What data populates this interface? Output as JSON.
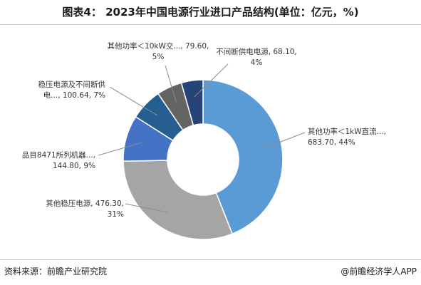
{
  "title": "图表4： 2023年中国电源行业进口产品结构(单位：亿元，%)",
  "source": "资料来源：前瞻产业研究院",
  "brand": "@前瞻经济学人APP",
  "chart_data": {
    "type": "pie",
    "donut": true,
    "start_angle_deg": 0,
    "direction": "clockwise",
    "slices": [
      {
        "name": "其他功率＜1kW直流...",
        "value": 683.7,
        "percent": "44%",
        "color": "#5b9bd5",
        "label_lines": [
          "其他功率＜1kW直流...,",
          "683.70, 44%"
        ],
        "label_anchor": "start"
      },
      {
        "name": "其他稳压电源",
        "value": 476.3,
        "percent": "31%",
        "color": "#a5a5a5",
        "label_lines": [
          "其他稳压电源, 476.30,",
          "31%"
        ],
        "label_anchor": "end"
      },
      {
        "name": "品目8471所列机器...",
        "value": 144.8,
        "percent": "9%",
        "color": "#4472c4",
        "label_lines": [
          "品目8471所列机器...,",
          "144.80, 9%"
        ],
        "label_anchor": "end"
      },
      {
        "name": "稳压电源及不间断供电...",
        "value": 100.64,
        "percent": "7%",
        "color": "#255e91",
        "label_lines": [
          "稳压电源及不间断供",
          "电..., 100.64, 7%"
        ],
        "label_anchor": "end"
      },
      {
        "name": "其他功率＜10kW交...",
        "value": 79.6,
        "percent": "5%",
        "color": "#636363",
        "label_lines": [
          "其他功率＜10kW交..., 79.60,",
          "5%"
        ],
        "label_anchor": "middle"
      },
      {
        "name": "不间断供电电源",
        "value": 68.1,
        "percent": "4%",
        "color": "#264478",
        "label_lines": [
          "不间断供电电源, 68.10,",
          "4%"
        ],
        "label_anchor": "middle"
      }
    ]
  }
}
